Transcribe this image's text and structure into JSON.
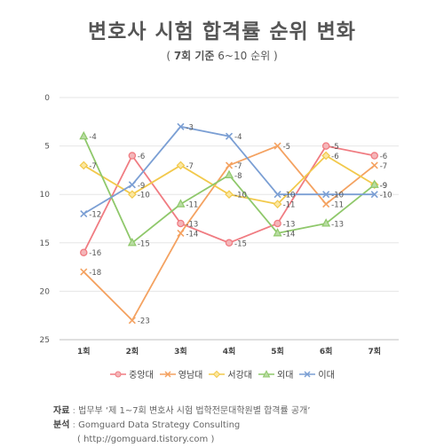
{
  "header": {
    "title": "변호사 시험 합격률 순위 변화",
    "subtitle_open": "( ",
    "subtitle_main": "7회 기준",
    "subtitle_rest": " 6~10 순위 )"
  },
  "chart_data": {
    "type": "line",
    "title": "변호사 시험 합격률 순위 변화",
    "subtitle": "( 7회 기준 6~10 순위 )",
    "categories": [
      "1회",
      "2회",
      "3회",
      "4회",
      "5회",
      "6회",
      "7회"
    ],
    "y_reversed": true,
    "ylim": [
      0,
      25
    ],
    "yticks": [
      0,
      5,
      10,
      15,
      20,
      25
    ],
    "grid": true,
    "legend_position": "bottom",
    "series": [
      {
        "name": "중앙대",
        "values": [
          16,
          6,
          13,
          15,
          13,
          5,
          6
        ],
        "color": "#f07c82",
        "marker": "circle"
      },
      {
        "name": "영남대",
        "values": [
          18,
          23,
          14,
          7,
          5,
          11,
          7
        ],
        "color": "#f4a261",
        "marker": "x"
      },
      {
        "name": "서강대",
        "values": [
          7,
          10,
          7,
          10,
          11,
          6,
          9
        ],
        "color": "#f2c94c",
        "marker": "diamond"
      },
      {
        "name": "외대",
        "values": [
          4,
          15,
          11,
          8,
          14,
          13,
          9
        ],
        "color": "#8fc86b",
        "marker": "triangle"
      },
      {
        "name": "이대",
        "values": [
          12,
          9,
          3,
          4,
          10,
          10,
          10
        ],
        "color": "#7b9fd4",
        "marker": "x"
      }
    ],
    "data_labels": {
      "중앙대": [
        "-16",
        "-6",
        "-13",
        "-15",
        "-13",
        "-5",
        "-6"
      ],
      "영남대": [
        "-18",
        "-23",
        "-14",
        "-7",
        "-5",
        "-11",
        "-7"
      ],
      "서강대": [
        "-7",
        "-10",
        "-7",
        "-10",
        "-11",
        "-6",
        "-9"
      ],
      "외대": [
        "-4",
        "-15",
        "-11",
        "-8",
        "-14",
        "-13",
        "-9"
      ],
      "이대": [
        "-12",
        "-9",
        "-3",
        "-4",
        "-10",
        "-10",
        "-10"
      ]
    }
  },
  "source": {
    "source_label": "자료",
    "source_text": "법무부 ‘제 1~7회 변호사 시험 법학전문대학원별 합격률 공개’",
    "analysis_label": "분석",
    "analysis_text": "Gomguard Data Strategy Consulting",
    "url_text": "( http://gomguard.tistory.com )"
  }
}
